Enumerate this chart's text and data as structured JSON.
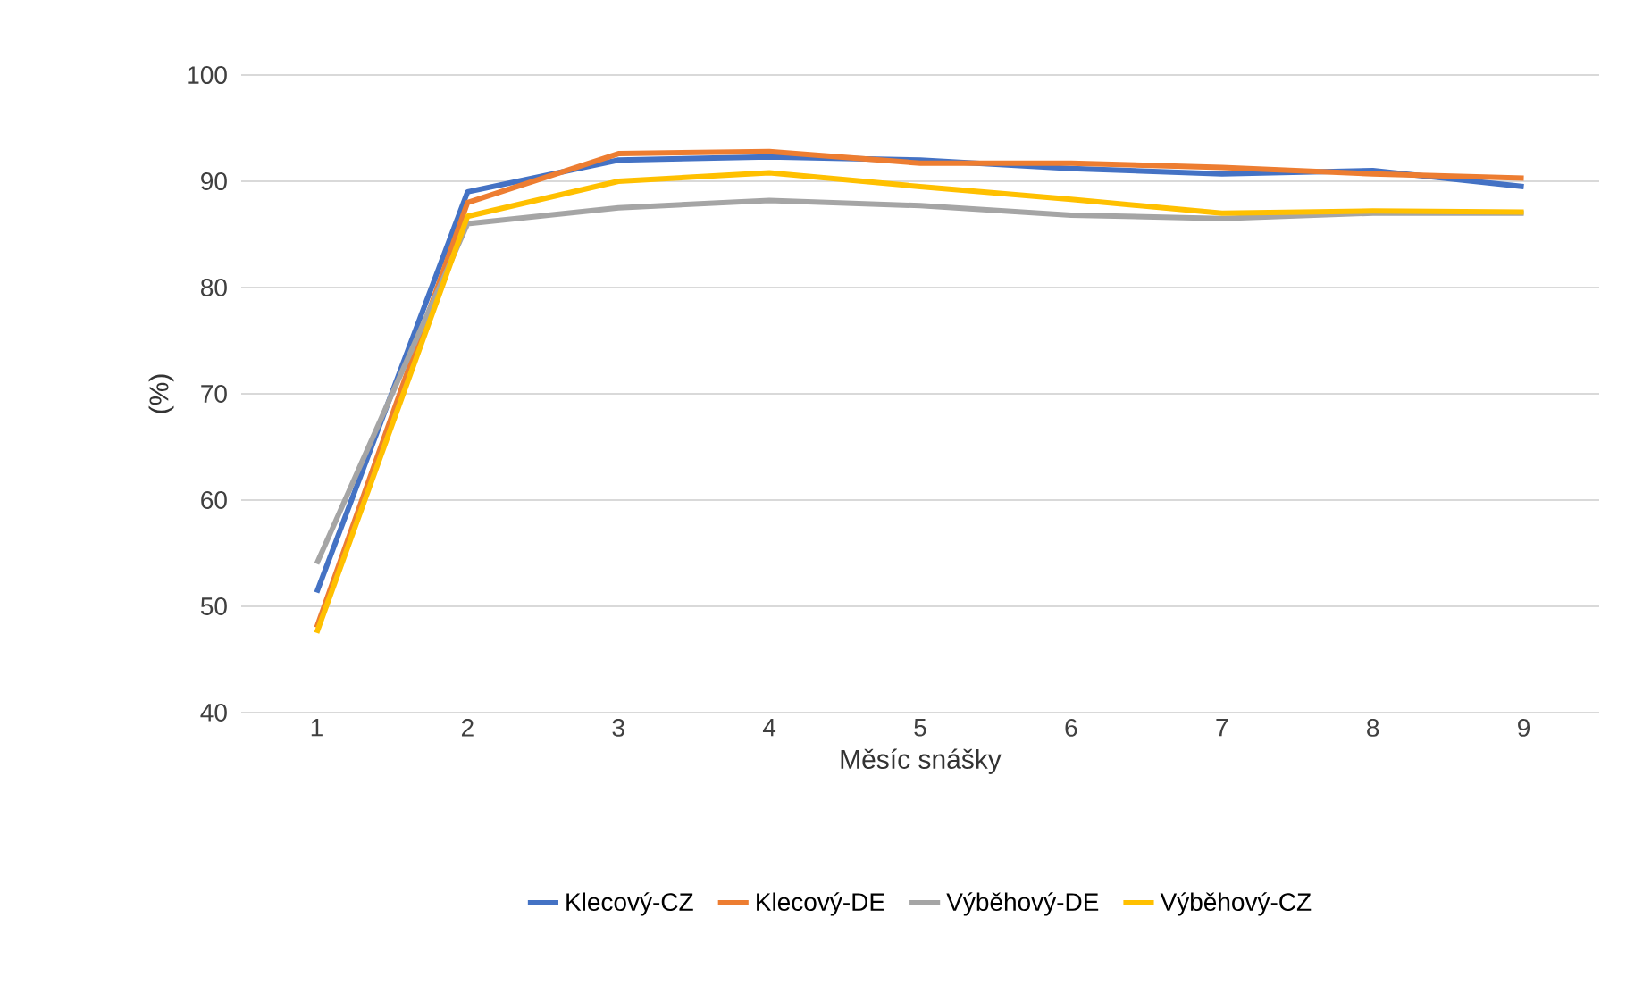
{
  "chart_data": {
    "type": "line",
    "xlabel": "Měsíc snášky",
    "ylabel": "(%)",
    "categories": [
      "1",
      "2",
      "3",
      "4",
      "5",
      "6",
      "7",
      "8",
      "9"
    ],
    "series": [
      {
        "name": "Klecový-CZ",
        "color": "#4472c4",
        "values": [
          51.3,
          89,
          92,
          92.3,
          92,
          91.2,
          90.7,
          91,
          89.5
        ]
      },
      {
        "name": "Klecový-DE",
        "color": "#ed7d31",
        "values": [
          48,
          88,
          92.6,
          92.8,
          91.7,
          91.7,
          91.3,
          90.7,
          90.3
        ]
      },
      {
        "name": "Výběhový-DE",
        "color": "#a5a5a5",
        "values": [
          54,
          86,
          87.5,
          88.2,
          87.7,
          86.8,
          86.5,
          87,
          87
        ]
      },
      {
        "name": "Výběhový-CZ",
        "color": "#ffc000",
        "values": [
          47.5,
          86.7,
          90,
          90.8,
          89.5,
          88.3,
          87,
          87.2,
          87.1
        ]
      }
    ],
    "ylim": [
      40,
      100
    ],
    "yticks": [
      40,
      50,
      60,
      70,
      80,
      90,
      100
    ],
    "grid": "y",
    "legend": "bottom",
    "marker": "none",
    "line_style": "solid"
  }
}
